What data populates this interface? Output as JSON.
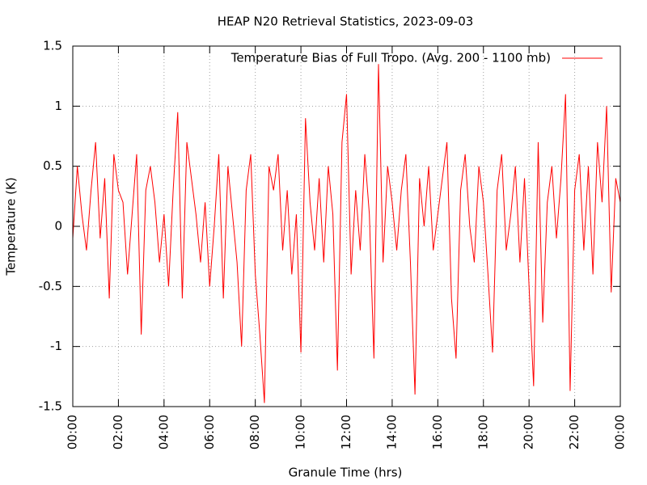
{
  "chart_data": {
    "type": "line",
    "title": "HEAP N20 Retrieval Statistics, 2023-09-03",
    "x_label": "Granule Time (hrs)",
    "y_label": "Temperature (K)",
    "series": [
      {
        "name": "Temperature Bias of Full Tropo. (Avg. 200 - 1100 mb)",
        "color": "#ff0000",
        "x": [
          0,
          0.2,
          0.4,
          0.6,
          0.8,
          1,
          1.2,
          1.4,
          1.6,
          1.8,
          2,
          2.2,
          2.4,
          2.6,
          2.8,
          3,
          3.2,
          3.4,
          3.6,
          3.8,
          4,
          4.2,
          4.4,
          4.6,
          4.8,
          5,
          5.2,
          5.4,
          5.6,
          5.8,
          6,
          6.2,
          6.4,
          6.6,
          6.8,
          7,
          7.2,
          7.4,
          7.6,
          7.8,
          8,
          8.2,
          8.4,
          8.6,
          8.8,
          9,
          9.2,
          9.4,
          9.6,
          9.8,
          10,
          10.2,
          10.4,
          10.6,
          10.8,
          11,
          11.2,
          11.4,
          11.6,
          11.8,
          12,
          12.2,
          12.4,
          12.6,
          12.8,
          13,
          13.2,
          13.4,
          13.6,
          13.8,
          14,
          14.2,
          14.4,
          14.6,
          14.8,
          15,
          15.2,
          15.4,
          15.6,
          15.8,
          16,
          16.2,
          16.4,
          16.6,
          16.8,
          17,
          17.2,
          17.4,
          17.6,
          17.8,
          18,
          18.2,
          18.4,
          18.6,
          18.8,
          19,
          19.2,
          19.4,
          19.6,
          19.8,
          20,
          20.2,
          20.4,
          20.6,
          20.8,
          21,
          21.2,
          21.4,
          21.6,
          21.8,
          22,
          22.2,
          22.4,
          22.6,
          22.8,
          23,
          23.2,
          23.4,
          23.6,
          23.8,
          24
        ],
        "values": [
          -0.1,
          0.5,
          0.1,
          -0.2,
          0.3,
          0.7,
          -0.1,
          0.4,
          -0.6,
          0.6,
          0.3,
          0.2,
          -0.4,
          0.1,
          0.6,
          -0.9,
          0.3,
          0.5,
          0.2,
          -0.3,
          0.1,
          -0.5,
          0.3,
          0.95,
          -0.6,
          0.7,
          0.4,
          0.1,
          -0.3,
          0.2,
          -0.5,
          0,
          0.6,
          -0.6,
          0.5,
          0.1,
          -0.3,
          -1,
          0.3,
          0.6,
          -0.4,
          -0.9,
          -1.47,
          0.5,
          0.3,
          0.6,
          -0.2,
          0.3,
          -0.4,
          0.1,
          -1.05,
          0.9,
          0.2,
          -0.2,
          0.4,
          -0.3,
          0.5,
          0.1,
          -1.2,
          0.7,
          1.1,
          -0.4,
          0.3,
          -0.2,
          0.6,
          0.1,
          -1.1,
          1.35,
          -0.3,
          0.5,
          0.2,
          -0.2,
          0.3,
          0.6,
          -0.3,
          -1.4,
          0.4,
          0,
          0.5,
          -0.2,
          0.1,
          0.4,
          0.7,
          -0.6,
          -1.1,
          0.3,
          0.6,
          0,
          -0.3,
          0.5,
          0.2,
          -0.4,
          -1.05,
          0.3,
          0.6,
          -0.2,
          0.1,
          0.5,
          -0.3,
          0.4,
          -0.5,
          -1.33,
          0.7,
          -0.8,
          0.2,
          0.5,
          -0.1,
          0.4,
          1.1,
          -1.37,
          0.3,
          0.6,
          -0.2,
          0.5,
          -0.4,
          0.7,
          0.2,
          1,
          -0.55,
          0.4,
          0.2
        ]
      }
    ],
    "xlim": [
      0,
      24
    ],
    "xticks": [
      {
        "value": 0,
        "label": "00:00"
      },
      {
        "value": 2,
        "label": "02:00"
      },
      {
        "value": 4,
        "label": "04:00"
      },
      {
        "value": 6,
        "label": "06:00"
      },
      {
        "value": 8,
        "label": "08:00"
      },
      {
        "value": 10,
        "label": "10:00"
      },
      {
        "value": 12,
        "label": "12:00"
      },
      {
        "value": 14,
        "label": "14:00"
      },
      {
        "value": 16,
        "label": "16:00"
      },
      {
        "value": 18,
        "label": "18:00"
      },
      {
        "value": 20,
        "label": "20:00"
      },
      {
        "value": 22,
        "label": "22:00"
      },
      {
        "value": 24,
        "label": "00:00"
      }
    ],
    "ylim": [
      -1.5,
      1.5
    ],
    "yticks": [
      -1.5,
      -1,
      -0.5,
      0,
      0.5,
      1,
      1.5
    ],
    "grid": true,
    "legend": "top-right"
  }
}
